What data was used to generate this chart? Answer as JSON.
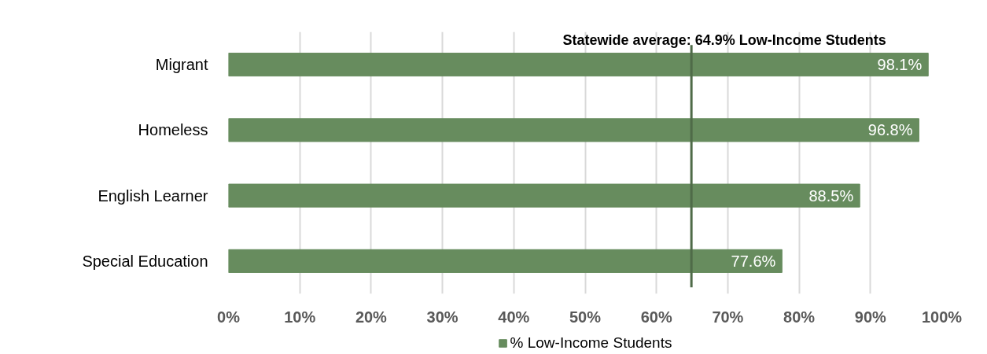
{
  "chart_data": {
    "type": "bar",
    "orientation": "horizontal",
    "categories": [
      "Migrant",
      "Homeless",
      "English Learner",
      "Special Education"
    ],
    "series": [
      {
        "name": "% Low-Income Students",
        "color": "#678c5e",
        "values": [
          98.1,
          96.8,
          88.5,
          77.6
        ],
        "value_labels": [
          "98.1%",
          "96.8%",
          "88.5%",
          "77.6%"
        ]
      }
    ],
    "xlim": [
      0,
      100
    ],
    "xticks": [
      {
        "value": 0,
        "label": "0%"
      },
      {
        "value": 10,
        "label": "10%"
      },
      {
        "value": 20,
        "label": "20%"
      },
      {
        "value": 30,
        "label": "30%"
      },
      {
        "value": 40,
        "label": "40%"
      },
      {
        "value": 50,
        "label": "50%"
      },
      {
        "value": 60,
        "label": "60%"
      },
      {
        "value": 70,
        "label": "70%"
      },
      {
        "value": 80,
        "label": "80%"
      },
      {
        "value": 90,
        "label": "90%"
      },
      {
        "value": 100,
        "label": "100%"
      }
    ],
    "grid": "x",
    "legend": "bottom",
    "ref_lines": [
      {
        "axis": "x",
        "value": 64.9,
        "label": "Statewide average: 64.9% Low-Income Students",
        "color": "#4f6b48"
      }
    ]
  }
}
